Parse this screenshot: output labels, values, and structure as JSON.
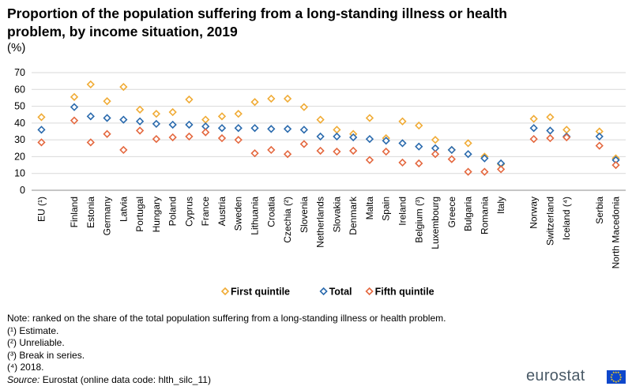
{
  "title": "Proportion of the population suffering from a long-standing illness or health problem, by income situation, 2019",
  "unit": "(%)",
  "chart_data": {
    "type": "scatter",
    "ylim": [
      0,
      70
    ],
    "yticks": [
      0,
      10,
      20,
      30,
      40,
      50,
      60,
      70
    ],
    "gridlines": true,
    "legend_position": "bottom-center",
    "categories": [
      "EU (¹)",
      "Finland",
      "Estonia",
      "Germany",
      "Latvia",
      "Portugal",
      "Hungary",
      "Poland",
      "Cyprus",
      "France",
      "Austria",
      "Sweden",
      "Lithuania",
      "Croatia",
      "Czechia (²)",
      "Slovenia",
      "Netherlands",
      "Slovakia",
      "Denmark",
      "Malta",
      "Spain",
      "Ireland",
      "Belgium (³)",
      "Luxembourg",
      "Greece",
      "Bulgaria",
      "Romania",
      "Italy",
      "Norway",
      "Switzerland",
      "Iceland (⁴)",
      "Serbia",
      "North Macedonia"
    ],
    "groups": [
      [
        0
      ],
      [
        1,
        2,
        3,
        4,
        5,
        6,
        7,
        8,
        9,
        10,
        11,
        12,
        13,
        14,
        15,
        16,
        17,
        18,
        19,
        20,
        21,
        22,
        23,
        24,
        25,
        26,
        27
      ],
      [
        28,
        29,
        30
      ],
      [
        31,
        32
      ]
    ],
    "series": [
      {
        "name": "First quintile",
        "color": "#f0ab35",
        "values": [
          43.5,
          55.5,
          63,
          53,
          61.5,
          48,
          45.5,
          46.5,
          54,
          42,
          44,
          45.5,
          52.5,
          54.5,
          54.5,
          49.5,
          42,
          36,
          33.5,
          43,
          31,
          41,
          38.5,
          30,
          24,
          28,
          20,
          15.5,
          42.5,
          43.5,
          36,
          35,
          19
        ]
      },
      {
        "name": "Total",
        "color": "#2a6aad",
        "values": [
          36,
          49.5,
          44,
          43,
          42,
          41,
          39.5,
          39,
          39,
          38,
          37,
          37,
          37,
          36.5,
          36.5,
          36,
          32,
          32,
          31.5,
          30.5,
          29.5,
          28,
          26,
          25,
          24,
          21.5,
          19,
          16,
          37,
          35.5,
          32,
          32,
          18
        ]
      },
      {
        "name": "Fifth quintile",
        "color": "#e4683f",
        "values": [
          28.5,
          41.5,
          28.5,
          33.5,
          24,
          35.5,
          30.5,
          31.5,
          32,
          34.5,
          31,
          30,
          22,
          24,
          21.5,
          27.5,
          23.5,
          23,
          23.5,
          18,
          23,
          16.5,
          16,
          21.5,
          18.5,
          11,
          11,
          12.5,
          30.5,
          31,
          31.5,
          26.5,
          15
        ]
      }
    ]
  },
  "notes": [
    "Note: ranked on the share of the total population suffering from a long-standing illness or health problem.",
    "(¹) Estimate.",
    "(²) Unreliable.",
    "(³) Break in series.",
    "(⁴) 2018."
  ],
  "source": {
    "label": "Source:",
    "text": " Eurostat (online data code: hlth_silc_11)"
  },
  "logo_text": "eurostat"
}
